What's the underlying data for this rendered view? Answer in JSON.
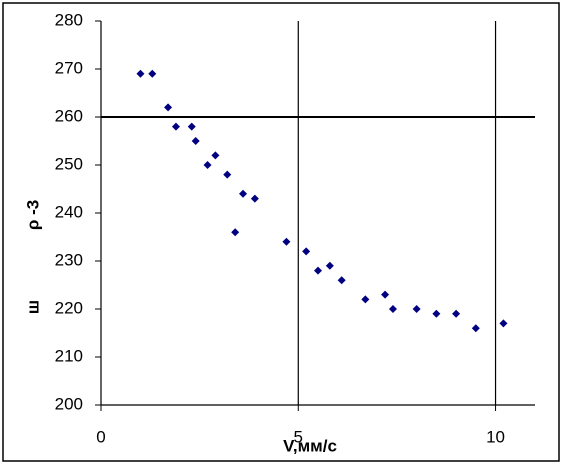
{
  "chart_data": {
    "type": "scatter",
    "x_label": "V,мм/с",
    "y_label": "ρ  -3",
    "y_label_mark": "ш",
    "color": "#000080",
    "x": [
      1.0,
      1.3,
      1.7,
      1.9,
      2.3,
      2.4,
      2.9,
      2.7,
      3.2,
      3.6,
      3.9,
      3.4,
      4.7,
      5.2,
      5.5,
      5.8,
      6.1,
      6.7,
      7.2,
      7.4,
      8.0,
      8.5,
      9.0,
      9.5,
      10.2
    ],
    "values": [
      269,
      269,
      262,
      258,
      258,
      255,
      252,
      250,
      248,
      244,
      243,
      236,
      234,
      232,
      228,
      229,
      226,
      222,
      223,
      220,
      220,
      219,
      219,
      216,
      217
    ],
    "xlim": [
      0,
      11
    ],
    "xticks": [
      0,
      5,
      10
    ],
    "ylim": [
      200,
      280
    ],
    "yticks": [
      200,
      210,
      220,
      230,
      240,
      250,
      260,
      270,
      280
    ],
    "x_grid_lines": [
      5,
      10
    ],
    "y_grid_lines": [
      260
    ]
  }
}
